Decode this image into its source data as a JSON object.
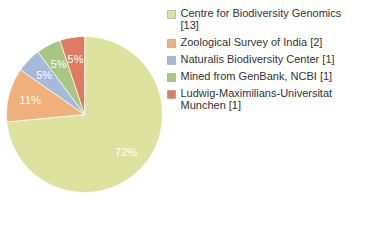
{
  "chart_data": {
    "type": "pie",
    "categories": [
      "Centre for Biodiversity Genomics [13]",
      "Zoological Survey of India [2]",
      "Naturalis Biodiversity Center [1]",
      "Mined from GenBank, NCBI [1]",
      "Ludwig-Maximilians-Universitat Munchen [1]"
    ],
    "values": [
      72,
      11,
      5,
      5,
      5
    ],
    "value_labels": [
      "72%",
      "11%",
      "5%",
      "5%",
      "5%"
    ],
    "colors": [
      "#dde39f",
      "#f0b07b",
      "#a5b9dc",
      "#a6c681",
      "#e07b62"
    ],
    "data_labels": true,
    "legend": "right"
  }
}
